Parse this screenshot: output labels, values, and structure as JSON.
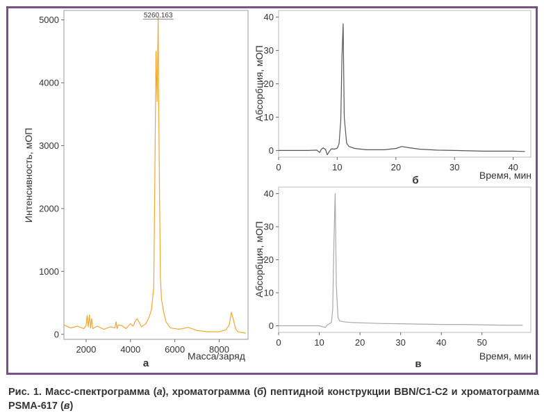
{
  "caption": {
    "p1": "Рис. 1. Масс-спектрограмма (",
    "i1": "а",
    "p2": "), хроматограмма (",
    "i2": "б",
    "p3": ") пептидной конструкции BBN/C1-C2 и хроматограмма PSMA-617 (",
    "i3": "в",
    "p4": ")"
  },
  "chart_data": [
    {
      "id": "a",
      "type": "line",
      "panel_label": "а",
      "xlabel": "Масса/заряд",
      "ylabel": "Интенсивность, мОП",
      "xlim": [
        1000,
        9300
      ],
      "ylim": [
        -80,
        5150
      ],
      "xticks": [
        2000,
        4000,
        6000,
        8000
      ],
      "yticks": [
        0,
        1000,
        2000,
        3000,
        4000,
        5000
      ],
      "peak_label": "5260.163",
      "line_color": "#f0a830",
      "grid": false,
      "x": [
        1000,
        1300,
        1600,
        1900,
        2000,
        2050,
        2100,
        2150,
        2200,
        2250,
        2300,
        2500,
        2800,
        3100,
        3300,
        3350,
        3400,
        3450,
        3600,
        3800,
        4000,
        4100,
        4150,
        4200,
        4300,
        4500,
        4700,
        4850,
        4950,
        5050,
        5100,
        5150,
        5200,
        5250,
        5270,
        5300,
        5350,
        5400,
        5500,
        5600,
        5800,
        6200,
        6600,
        7000,
        7500,
        8000,
        8300,
        8450,
        8550,
        8650,
        8750,
        8850,
        9000,
        9200
      ],
      "y": [
        150,
        100,
        130,
        90,
        140,
        300,
        120,
        310,
        100,
        250,
        90,
        130,
        80,
        120,
        100,
        200,
        90,
        150,
        140,
        90,
        170,
        130,
        150,
        200,
        250,
        120,
        170,
        280,
        400,
        750,
        2500,
        4500,
        3700,
        5040,
        3800,
        2600,
        900,
        550,
        350,
        200,
        100,
        80,
        110,
        60,
        40,
        40,
        70,
        150,
        350,
        220,
        80,
        40,
        30,
        20
      ]
    },
    {
      "id": "b",
      "type": "line",
      "panel_label": "б",
      "xlabel": "Время, мин",
      "ylabel": "Абсорбция, мОП",
      "xlim": [
        0,
        43
      ],
      "ylim": [
        -2,
        42
      ],
      "xticks": [
        0,
        10,
        20,
        30,
        40
      ],
      "yticks": [
        0,
        10,
        20,
        30,
        40
      ],
      "line_color": "#555555",
      "grid": false,
      "x": [
        0,
        5,
        6.5,
        7,
        7.3,
        7.6,
        8,
        8.3,
        8.6,
        9,
        9.5,
        10,
        10.3,
        10.6,
        10.8,
        11.0,
        11.2,
        11.6,
        12,
        13,
        15,
        18,
        20,
        21,
        22,
        24,
        27,
        30,
        35,
        40,
        42
      ],
      "y": [
        0,
        0,
        0.1,
        -0.6,
        0.4,
        0.8,
        0.3,
        -1.3,
        -0.4,
        0.5,
        0.4,
        0.7,
        2,
        9,
        28,
        38,
        10,
        2.2,
        1.2,
        0.6,
        0.2,
        0.2,
        0.6,
        1.2,
        0.9,
        0.4,
        0.1,
        0,
        -0.2,
        -0.2,
        -0.3
      ]
    },
    {
      "id": "v",
      "type": "line",
      "panel_label": "в",
      "xlabel": "Время, мин",
      "ylabel": "Абсорбция, мОП",
      "xlim": [
        0,
        62
      ],
      "ylim": [
        -2,
        42
      ],
      "xticks": [
        0,
        10,
        20,
        30,
        40,
        50
      ],
      "yticks": [
        0,
        10,
        20,
        30,
        40
      ],
      "line_color": "#a8a8a8",
      "grid": false,
      "x": [
        0,
        10,
        11.5,
        12,
        12.5,
        13,
        13.3,
        13.6,
        13.9,
        14.2,
        14.6,
        15,
        16,
        18,
        20,
        25,
        30,
        35,
        40,
        45,
        50,
        55,
        60
      ],
      "y": [
        0,
        0,
        -0.5,
        0.3,
        0.6,
        1,
        5,
        25,
        40,
        12,
        2.5,
        1.5,
        1.2,
        1,
        0.9,
        0.7,
        0.6,
        0.5,
        0.4,
        0.4,
        0.3,
        0.2,
        0.2
      ]
    }
  ]
}
